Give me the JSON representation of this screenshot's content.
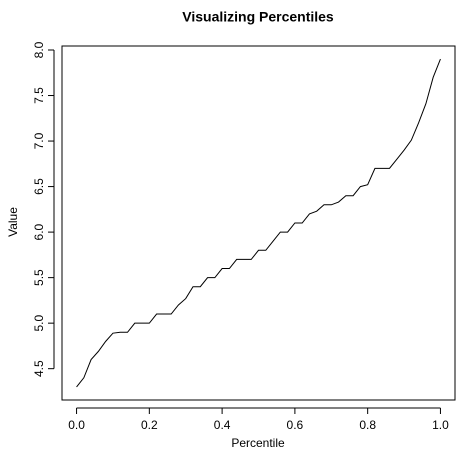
{
  "chart_data": {
    "type": "line",
    "title": "Visualizing Percentiles",
    "x_label": "Percentile",
    "y_label": "Value",
    "x": [
      0,
      0.02,
      0.04,
      0.06,
      0.08,
      0.1,
      0.12,
      0.14,
      0.16,
      0.18,
      0.2,
      0.22,
      0.24,
      0.26,
      0.28,
      0.3,
      0.32,
      0.34,
      0.36,
      0.38,
      0.4,
      0.42,
      0.44,
      0.46,
      0.48,
      0.5,
      0.52,
      0.54,
      0.56,
      0.58,
      0.6,
      0.62,
      0.64,
      0.66,
      0.68,
      0.7,
      0.72,
      0.74,
      0.76,
      0.78,
      0.8,
      0.82,
      0.84,
      0.86,
      0.88,
      0.9,
      0.92,
      0.94,
      0.96,
      0.98,
      1
    ],
    "series": [
      {
        "name": "Value",
        "color": "#000000",
        "values": [
          4.3,
          4.4,
          4.6,
          4.69,
          4.8,
          4.89,
          4.9,
          4.9,
          5.0,
          5.0,
          5.0,
          5.1,
          5.1,
          5.1,
          5.2,
          5.27,
          5.4,
          5.4,
          5.5,
          5.5,
          5.6,
          5.6,
          5.7,
          5.7,
          5.7,
          5.8,
          5.8,
          5.9,
          6.0,
          6.0,
          6.1,
          6.1,
          6.2,
          6.23,
          6.3,
          6.3,
          6.33,
          6.4,
          6.4,
          6.5,
          6.52,
          6.7,
          6.7,
          6.7,
          6.8,
          6.9,
          7.01,
          7.2,
          7.41,
          7.7,
          7.9
        ]
      }
    ],
    "xlim": [
      -0.04,
      1.04
    ],
    "ylim": [
      4.156,
      8.044
    ],
    "xticks": [
      {
        "value": 0,
        "label": "0.0"
      },
      0.2,
      0.4,
      0.6,
      0.8,
      {
        "value": 1,
        "label": "1.0"
      }
    ],
    "yticks": [
      4.5,
      {
        "value": 5,
        "label": "5.0"
      },
      5.5,
      {
        "value": 6,
        "label": "6.0"
      },
      6.5,
      {
        "value": 7,
        "label": "7.0"
      },
      7.5,
      {
        "value": 8,
        "label": "8.0"
      }
    ]
  }
}
